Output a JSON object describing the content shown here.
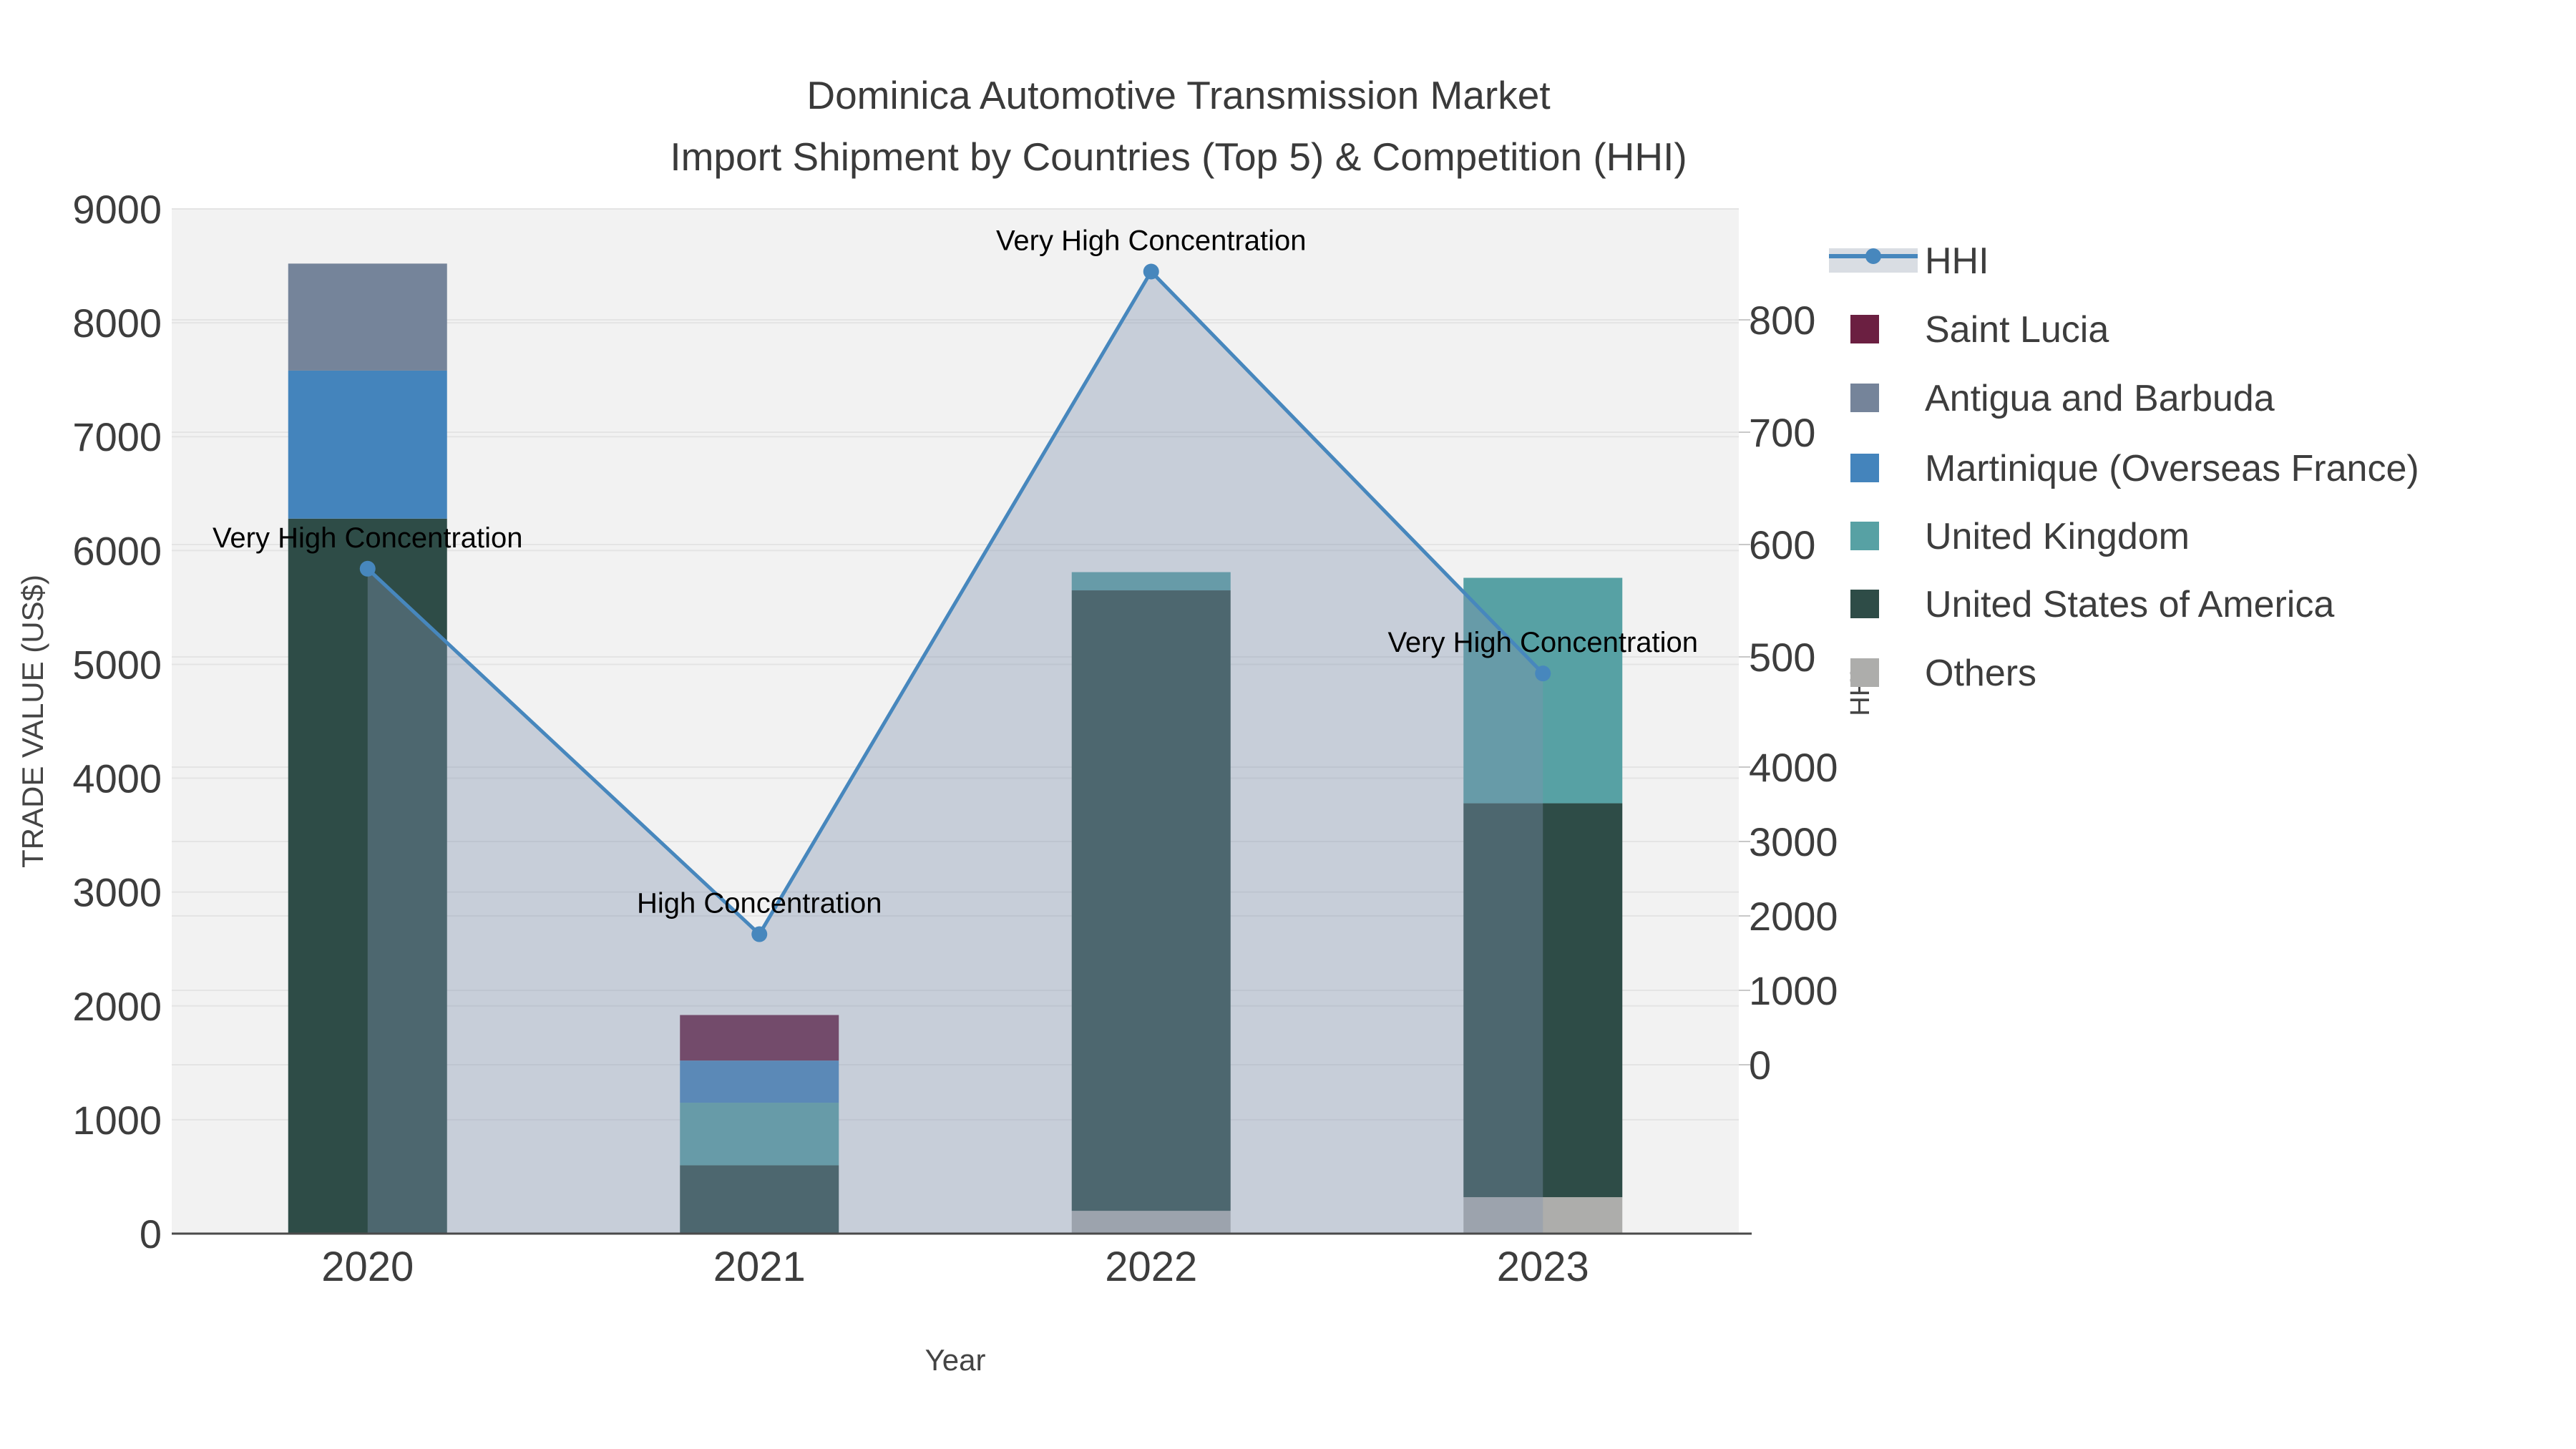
{
  "title": {
    "line1": "Dominica Automotive Transmission Market",
    "line2": "Import Shipment by Countries (Top 5) & Competition (HHI)"
  },
  "axes": {
    "left": {
      "title": "TRADE VALUE (US$)",
      "ticks": [
        "9000",
        "8000",
        "7000",
        "6000",
        "5000",
        "4000",
        "3000",
        "2000",
        "1000",
        "0"
      ]
    },
    "right": {
      "title": "HHI",
      "ticks_upper": [
        "800",
        "700",
        "600",
        "500"
      ],
      "ticks_lower": [
        "4000",
        "3000",
        "2000",
        "1000",
        "0"
      ]
    },
    "x": {
      "title": "Year",
      "ticks": [
        "2020",
        "2021",
        "2022",
        "2023"
      ]
    }
  },
  "legend": [
    {
      "label": "HHI",
      "color": "#4787bd",
      "swatch": "line"
    },
    {
      "label": "Saint Lucia",
      "color": "#6b1f41",
      "swatch": "box"
    },
    {
      "label": "Antigua and Barbuda",
      "color": "#75849a",
      "swatch": "box"
    },
    {
      "label": "Martinique (Overseas France)",
      "color": "#4484bc",
      "swatch": "box"
    },
    {
      "label": "United Kingdom",
      "color": "#57a1a4",
      "swatch": "box"
    },
    {
      "label": "United States of America",
      "color": "#2e4c47",
      "swatch": "box"
    },
    {
      "label": "Others",
      "color": "#adadab",
      "swatch": "box"
    }
  ],
  "annotations": [
    "Very High Concentration",
    "High Concentration",
    "Very High Concentration",
    "Very High Concentration"
  ],
  "colors": {
    "plot_bg": "#f2f2f2",
    "grid": "#e4e4e4",
    "axis_line": "#4a4a4a",
    "hhi_line": "#4787bd",
    "hhi_fill": "#8294af",
    "hhi_fill_opacity": "0.38",
    "hhi_legend_band": "#d9dde3",
    "tick_text": "#3d3d3d"
  },
  "chart_data": {
    "type": "composite",
    "categories": [
      "2020",
      "2021",
      "2022",
      "2023"
    ],
    "charts": [
      {
        "type": "bar",
        "stacked": true,
        "ylabel": "TRADE VALUE (US$)",
        "ylim": [
          0,
          9000
        ],
        "series": [
          {
            "name": "Others",
            "color": "#adadab",
            "values": [
              0,
              0,
              200,
              320
            ]
          },
          {
            "name": "United States of America",
            "color": "#2e4c47",
            "values": [
              6280,
              600,
              5450,
              3460
            ]
          },
          {
            "name": "United Kingdom",
            "color": "#57a1a4",
            "values": [
              0,
              550,
              160,
              1980
            ]
          },
          {
            "name": "Martinique (Overseas France)",
            "color": "#4484bc",
            "values": [
              1300,
              370,
              0,
              0
            ]
          },
          {
            "name": "Antigua and Barbuda",
            "color": "#75849a",
            "values": [
              940,
              0,
              0,
              0
            ]
          },
          {
            "name": "Saint Lucia",
            "color": "#6b1f41",
            "values": [
              0,
              400,
              0,
              0
            ]
          }
        ],
        "totals": [
          8520,
          1920,
          5810,
          5760
        ]
      },
      {
        "type": "line",
        "name": "HHI",
        "ylabel": "HHI",
        "area_fill": true,
        "values": [
          5840,
          2630,
          8450,
          4920
        ],
        "point_labels": [
          "Very High Concentration",
          "High Concentration",
          "Very High Concentration",
          "Very High Concentration"
        ]
      }
    ],
    "legend_position": "right",
    "grid": true
  }
}
